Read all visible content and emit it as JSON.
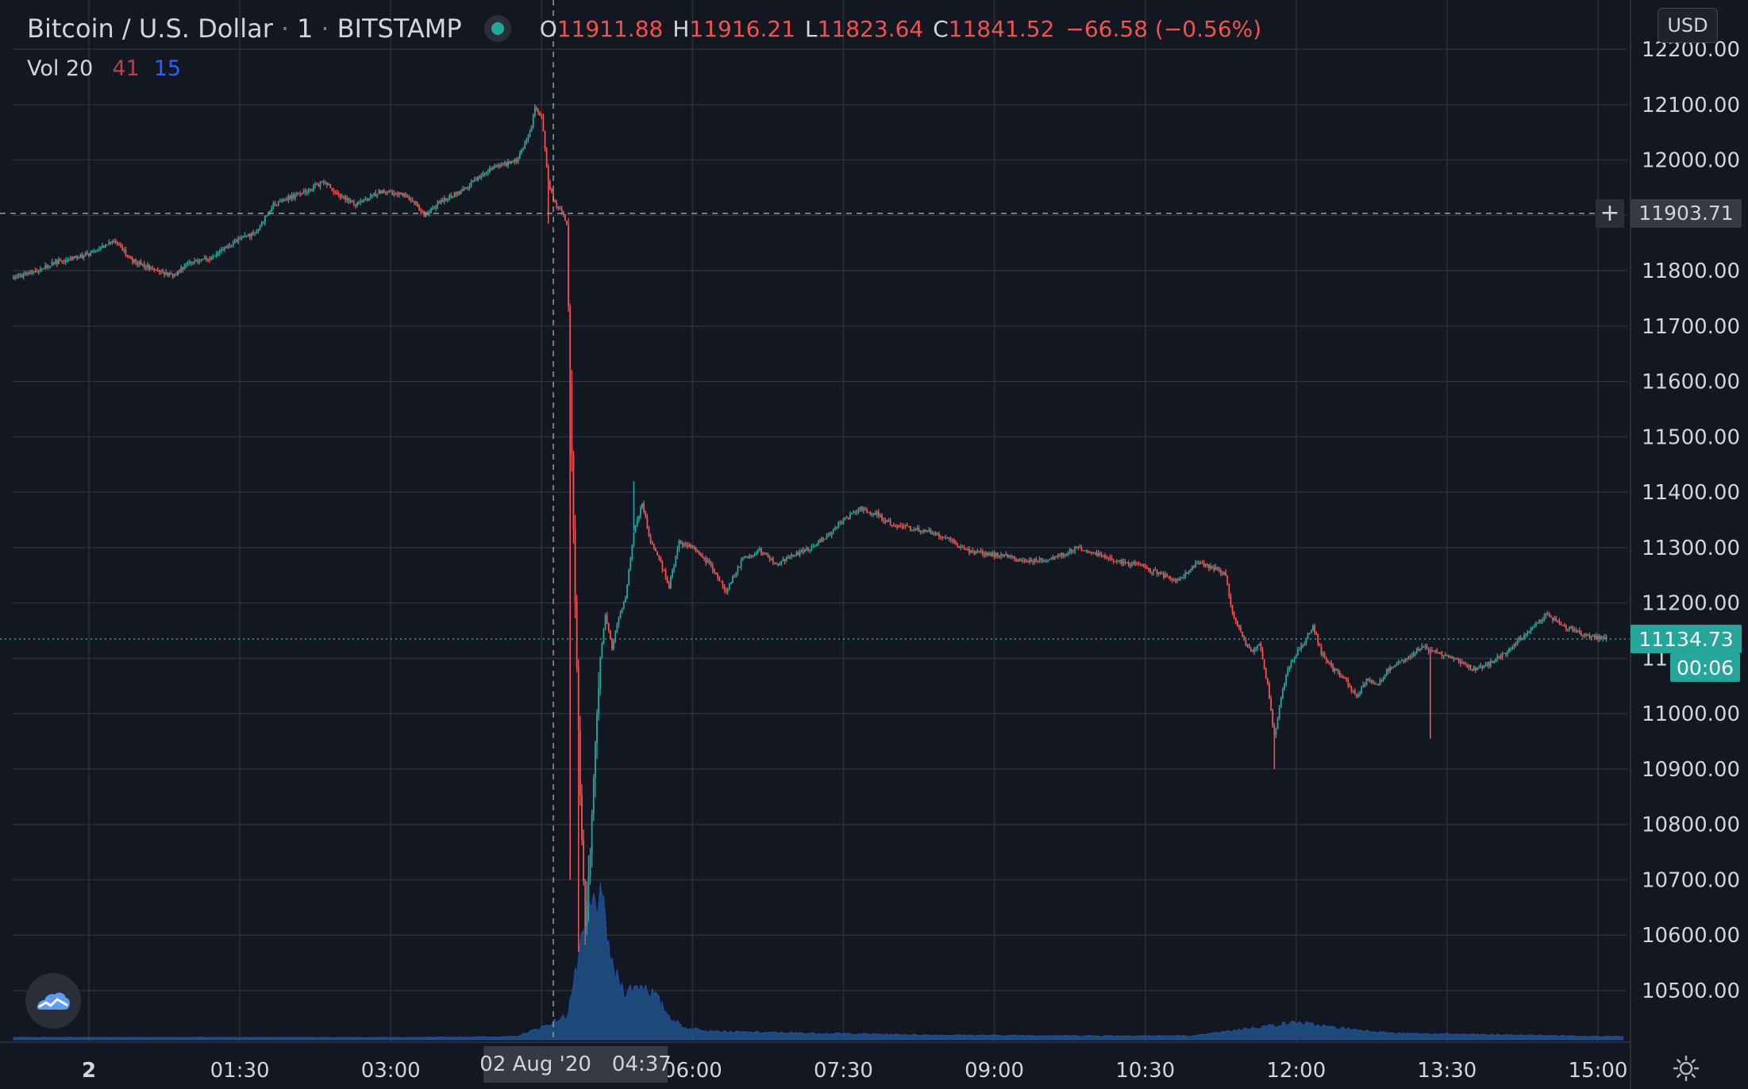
{
  "header": {
    "symbol": "Bitcoin / U.S. Dollar",
    "interval": "1",
    "exchange": "BITSTAMP",
    "ohlc": {
      "o_label": "O",
      "o_value": "11911.88",
      "h_label": "H",
      "h_value": "11916.21",
      "l_label": "L",
      "l_value": "11823.64",
      "c_label": "C",
      "c_value": "11841.52",
      "change": "−66.58 (−0.56%)"
    },
    "currency": "USD"
  },
  "volume_legend": {
    "label": "Vol 20",
    "value_a": "41",
    "value_b": "15"
  },
  "crosshair": {
    "price": "11903.71",
    "time_date": "02 Aug '20",
    "time_clock": "04:37"
  },
  "last_price": {
    "price": "11134.73",
    "countdown": "00:06"
  },
  "icons": {
    "plus": "+",
    "logo": "tradingview-logo-icon",
    "settings": "gear-icon"
  },
  "colors": {
    "background": "#131722",
    "grid": "#2a2e39",
    "up": "#26a69a",
    "down": "#ef5350",
    "volume": "#1f4f82",
    "text": "#d1d4dc"
  },
  "chart_data": {
    "type": "candlestick",
    "xlabel": "",
    "ylabel": "",
    "ylim": [
      10425,
      12250
    ],
    "y_ticks": [
      12200,
      12100,
      12000,
      11900,
      11800,
      11700,
      11600,
      11500,
      11400,
      11300,
      11200,
      11100,
      11000,
      10900,
      10800,
      10700,
      10600,
      10500
    ],
    "y_tick_labels": [
      "12200.00",
      "12100.00",
      "12000.00",
      "11900.00",
      "11800.00",
      "11700.00",
      "11600.00",
      "11500.00",
      "11400.00",
      "11300.00",
      "11200.00",
      "11100.00",
      "11000.00",
      "10900.00",
      "10800.00",
      "10700.00",
      "10600.00",
      "10500.00"
    ],
    "x_ticks": [
      0,
      90,
      180,
      270,
      360,
      450,
      540,
      630,
      720,
      810,
      900
    ],
    "x_tick_labels": [
      "2",
      "01:30",
      "03:00",
      "",
      "06:00",
      "07:30",
      "09:00",
      "10:30",
      "12:00",
      "13:30",
      "15:00"
    ],
    "x_range_minutes": [
      -45,
      915
    ],
    "candle_interval_minutes": 1,
    "crosshair_minute": 277,
    "price_path": [
      [
        -45,
        11785
      ],
      [
        -20,
        11815
      ],
      [
        0,
        11830
      ],
      [
        15,
        11855
      ],
      [
        25,
        11820
      ],
      [
        40,
        11800
      ],
      [
        50,
        11790
      ],
      [
        60,
        11815
      ],
      [
        75,
        11825
      ],
      [
        85,
        11850
      ],
      [
        100,
        11870
      ],
      [
        110,
        11920
      ],
      [
        130,
        11945
      ],
      [
        140,
        11960
      ],
      [
        150,
        11935
      ],
      [
        160,
        11920
      ],
      [
        175,
        11945
      ],
      [
        190,
        11935
      ],
      [
        200,
        11900
      ],
      [
        210,
        11925
      ],
      [
        225,
        11950
      ],
      [
        235,
        11975
      ],
      [
        245,
        11990
      ],
      [
        255,
        12000
      ],
      [
        262,
        12040
      ],
      [
        266,
        12090
      ],
      [
        270,
        12080
      ],
      [
        274,
        11960
      ],
      [
        278,
        11920
      ],
      [
        282,
        11910
      ],
      [
        285,
        11880
      ],
      [
        287,
        11600
      ],
      [
        290,
        11200
      ],
      [
        293,
        10850
      ],
      [
        296,
        10620
      ],
      [
        299,
        10750
      ],
      [
        302,
        10950
      ],
      [
        305,
        11100
      ],
      [
        308,
        11180
      ],
      [
        312,
        11120
      ],
      [
        315,
        11160
      ],
      [
        320,
        11210
      ],
      [
        325,
        11330
      ],
      [
        330,
        11380
      ],
      [
        335,
        11310
      ],
      [
        340,
        11280
      ],
      [
        346,
        11230
      ],
      [
        352,
        11310
      ],
      [
        360,
        11300
      ],
      [
        370,
        11270
      ],
      [
        380,
        11220
      ],
      [
        390,
        11280
      ],
      [
        400,
        11295
      ],
      [
        410,
        11270
      ],
      [
        420,
        11285
      ],
      [
        430,
        11300
      ],
      [
        440,
        11320
      ],
      [
        450,
        11350
      ],
      [
        460,
        11370
      ],
      [
        470,
        11360
      ],
      [
        480,
        11340
      ],
      [
        490,
        11335
      ],
      [
        500,
        11330
      ],
      [
        510,
        11320
      ],
      [
        520,
        11300
      ],
      [
        530,
        11290
      ],
      [
        545,
        11285
      ],
      [
        560,
        11275
      ],
      [
        575,
        11280
      ],
      [
        590,
        11300
      ],
      [
        600,
        11290
      ],
      [
        615,
        11275
      ],
      [
        630,
        11265
      ],
      [
        640,
        11250
      ],
      [
        650,
        11240
      ],
      [
        660,
        11270
      ],
      [
        670,
        11265
      ],
      [
        678,
        11250
      ],
      [
        682,
        11180
      ],
      [
        688,
        11140
      ],
      [
        693,
        11110
      ],
      [
        698,
        11130
      ],
      [
        703,
        11050
      ],
      [
        707,
        10960
      ],
      [
        711,
        11030
      ],
      [
        715,
        11080
      ],
      [
        720,
        11110
      ],
      [
        725,
        11130
      ],
      [
        730,
        11160
      ],
      [
        735,
        11110
      ],
      [
        742,
        11080
      ],
      [
        750,
        11060
      ],
      [
        756,
        11030
      ],
      [
        762,
        11060
      ],
      [
        768,
        11050
      ],
      [
        775,
        11080
      ],
      [
        785,
        11100
      ],
      [
        795,
        11120
      ],
      [
        805,
        11110
      ],
      [
        815,
        11100
      ],
      [
        825,
        11080
      ],
      [
        835,
        11090
      ],
      [
        845,
        11110
      ],
      [
        855,
        11140
      ],
      [
        862,
        11160
      ],
      [
        870,
        11180
      ],
      [
        878,
        11160
      ],
      [
        886,
        11150
      ],
      [
        895,
        11140
      ],
      [
        905,
        11135
      ]
    ],
    "volume_path": [
      [
        -45,
        3
      ],
      [
        200,
        3
      ],
      [
        255,
        4
      ],
      [
        265,
        12
      ],
      [
        275,
        20
      ],
      [
        285,
        30
      ],
      [
        288,
        60
      ],
      [
        292,
        100
      ],
      [
        298,
        160
      ],
      [
        304,
        180
      ],
      [
        308,
        150
      ],
      [
        312,
        90
      ],
      [
        320,
        60
      ],
      [
        330,
        70
      ],
      [
        338,
        55
      ],
      [
        346,
        30
      ],
      [
        355,
        15
      ],
      [
        380,
        10
      ],
      [
        500,
        6
      ],
      [
        600,
        5
      ],
      [
        660,
        5
      ],
      [
        690,
        14
      ],
      [
        720,
        22
      ],
      [
        740,
        16
      ],
      [
        780,
        8
      ],
      [
        850,
        6
      ],
      [
        915,
        4
      ]
    ],
    "volume_max": 200
  }
}
